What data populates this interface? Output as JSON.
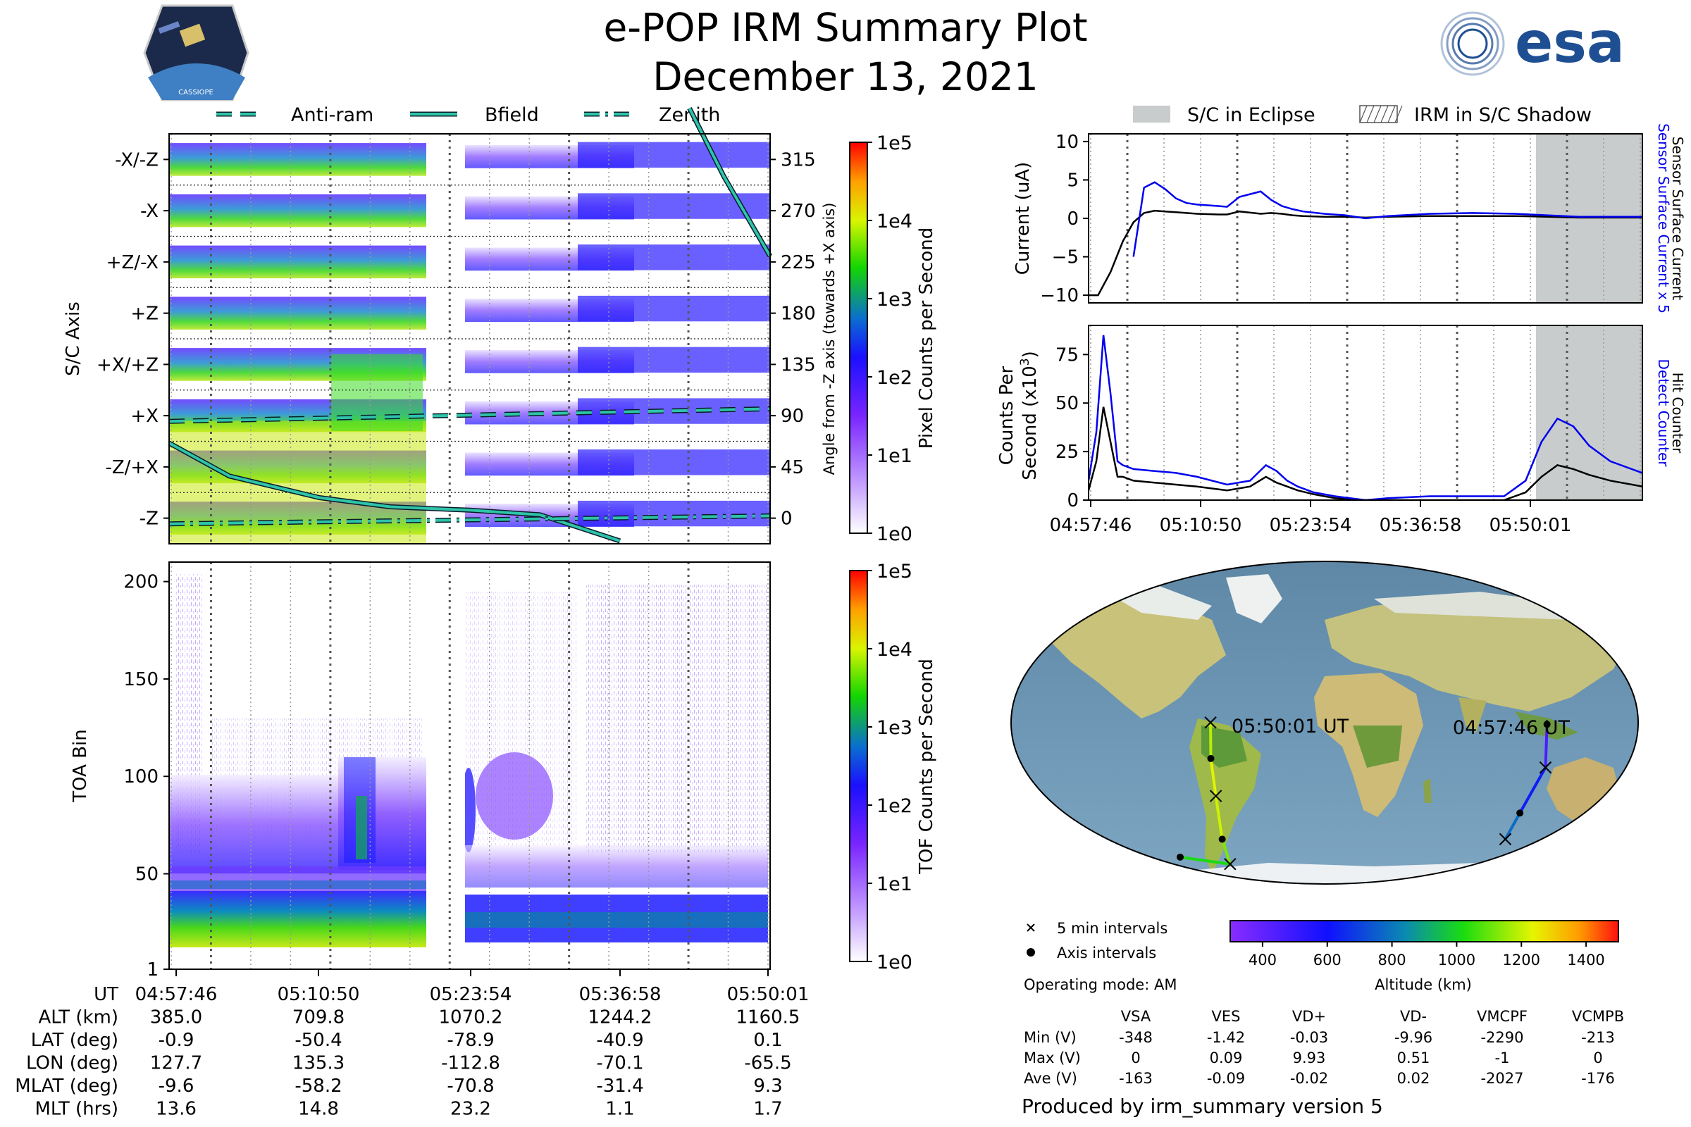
{
  "header": {
    "title": "e-POP IRM Summary Plot",
    "date": "December 13, 2021",
    "logo_left_text": "CASSIOPE",
    "logo_right_text": "esa"
  },
  "legend_top_left": {
    "items": [
      {
        "label": "Anti-ram",
        "style": "dashed"
      },
      {
        "label": "Bfield",
        "style": "solid"
      },
      {
        "label": "Zenith",
        "style": "dashdot"
      }
    ],
    "color": "#2ec4a8"
  },
  "legend_top_right": {
    "items": [
      {
        "label": "S/C in Eclipse",
        "style": "gray-fill"
      },
      {
        "label": "IRM in S/C Shadow",
        "style": "hatch"
      }
    ]
  },
  "time_ticks": [
    "04:57:46",
    "05:10:50",
    "05:23:54",
    "05:36:58",
    "05:50:01"
  ],
  "colors": {
    "anti_ram": "#2ec4a8",
    "detect_counter": "#0000ee",
    "hit_counter": "#000000",
    "eclipse": "#c9cccc"
  },
  "chart_data": [
    {
      "id": "sc_axis_spectrogram",
      "type": "heatmap",
      "ylabel": "S/C Axis",
      "yticks_left": [
        "-X/-Z",
        "-X",
        "+Z/-X",
        "+Z",
        "+X/+Z",
        "+X",
        "-Z/+X",
        "-Z"
      ],
      "ylabel_right": "Angle from -Z axis (towards +X axis)",
      "yticks_right": [
        "315",
        "270",
        "225",
        "180",
        "135",
        "90",
        "45",
        "0"
      ],
      "colorbar": {
        "label": "Pixel Counts per Second",
        "ticks": [
          "1e5",
          "1e4",
          "1e3",
          "1e2",
          "1e1",
          "1e0"
        ]
      },
      "series": [
        {
          "name": "Anti-ram",
          "x": [
            "04:57:46",
            "05:50:01"
          ],
          "y": [
            85,
            96
          ]
        },
        {
          "name": "Bfield",
          "x": [
            "04:57:46",
            "05:03:00",
            "05:10:50",
            "05:17:00",
            "05:23:54",
            "05:30:00",
            "05:36:58"
          ],
          "y": [
            66,
            37,
            18,
            10,
            7,
            3,
            -20
          ]
        },
        {
          "name": "Bfield",
          "x": [
            "05:43:00",
            "05:46:00",
            "05:50:01"
          ],
          "y": [
            360,
            300,
            230
          ]
        },
        {
          "name": "Zenith",
          "x": [
            "04:57:46",
            "05:50:01"
          ],
          "y": [
            -5,
            2
          ]
        }
      ]
    },
    {
      "id": "toa_spectrogram",
      "type": "heatmap",
      "ylabel": "TOA Bin",
      "yticks": [
        "200",
        "150",
        "100",
        "50",
        "1"
      ],
      "ylim": [
        1,
        210
      ],
      "colorbar": {
        "label": "TOF Counts per Second",
        "ticks": [
          "1e5",
          "1e4",
          "1e3",
          "1e2",
          "1e1",
          "1e0"
        ]
      }
    },
    {
      "id": "current_panel",
      "type": "line",
      "ylabel": "Current (uA)",
      "ylim": [
        -11,
        11
      ],
      "yticks": [
        "10",
        "5",
        "0",
        "−5",
        "−10"
      ],
      "right_labels": [
        {
          "text": "Sensor Surface Current x 5",
          "color": "#0000ee"
        },
        {
          "text": "Sensor Surface Current",
          "color": "#000000"
        }
      ],
      "x": [
        "04:57:46",
        "04:58:40",
        "04:59:50",
        "05:01:00",
        "05:02:00",
        "05:03:00",
        "05:04:00",
        "05:05:00",
        "05:06:00",
        "05:07:00",
        "05:08:00",
        "05:10:00",
        "05:10:50",
        "05:12:00",
        "05:14:00",
        "05:15:00",
        "05:16:00",
        "05:17:00",
        "05:18:00",
        "05:20:00",
        "05:22:00",
        "05:23:54",
        "05:26:00",
        "05:30:00",
        "05:34:00",
        "05:38:00",
        "05:41:00",
        "05:44:00",
        "05:50:01"
      ],
      "series": [
        {
          "name": "Sensor Surface Current",
          "values": [
            -10,
            -10,
            -7,
            -3,
            -0.5,
            0.7,
            1.0,
            0.9,
            0.8,
            0.7,
            0.6,
            0.5,
            0.5,
            0.9,
            0.6,
            0.7,
            0.6,
            0.4,
            0.3,
            0.2,
            0.2,
            0.1,
            0.2,
            0.3,
            0.3,
            0.3,
            0.2,
            0.1,
            0.1
          ]
        },
        {
          "name": "Sensor Surface Current x 5",
          "values": [
            null,
            null,
            null,
            null,
            -5,
            4.0,
            4.7,
            3.8,
            2.6,
            2.0,
            1.8,
            1.6,
            1.5,
            2.8,
            3.5,
            2.4,
            1.6,
            1.2,
            0.9,
            0.6,
            0.4,
            0.0,
            0.3,
            0.6,
            0.7,
            0.6,
            0.4,
            0.2,
            0.2
          ]
        }
      ]
    },
    {
      "id": "counts_panel",
      "type": "line",
      "ylabel": "Counts Per Second (x10³)",
      "ylim": [
        0,
        90
      ],
      "yticks": [
        "75",
        "50",
        "25",
        "0"
      ],
      "right_labels": [
        {
          "text": "Detect Counter",
          "color": "#0000ee"
        },
        {
          "text": "Hit Counter",
          "color": "#000000"
        }
      ],
      "x": [
        "04:57:46",
        "04:58:30",
        "04:59:10",
        "04:59:50",
        "05:00:30",
        "05:01:00",
        "05:02:00",
        "05:04:00",
        "05:06:00",
        "05:08:00",
        "05:10:50",
        "05:13:00",
        "05:14:30",
        "05:15:30",
        "05:16:30",
        "05:17:30",
        "05:19:00",
        "05:21:00",
        "05:23:54",
        "05:26:00",
        "05:30:00",
        "05:34:00",
        "05:36:58",
        "05:39:00",
        "05:40:30",
        "05:42:00",
        "05:43:30",
        "05:45:00",
        "05:47:00",
        "05:50:01"
      ],
      "series": [
        {
          "name": "Hit Counter",
          "values": [
            5,
            20,
            48,
            30,
            12,
            12,
            10,
            9,
            8,
            7,
            5,
            7,
            12,
            9,
            7,
            5,
            3,
            1,
            0,
            0,
            0,
            0,
            0,
            4,
            12,
            18,
            16,
            13,
            10,
            7
          ]
        },
        {
          "name": "Detect Counter",
          "values": [
            10,
            35,
            85,
            55,
            20,
            18,
            16,
            15,
            14,
            12,
            8,
            10,
            18,
            15,
            10,
            7,
            4,
            2,
            0,
            1,
            2,
            2,
            2,
            10,
            30,
            42,
            38,
            28,
            20,
            14
          ]
        }
      ],
      "eclipse_start": "05:43:30"
    },
    {
      "id": "orbit_map",
      "type": "scatter",
      "colorbar": {
        "label": "Altitude (km)",
        "ticks": [
          "400",
          "600",
          "800",
          "1000",
          "1200",
          "1400"
        ],
        "range": [
          300,
          1500
        ]
      },
      "start_label": "04:57:46 UT",
      "end_label": "05:50:01 UT",
      "legend": [
        {
          "marker": "x",
          "label": "5 min intervals"
        },
        {
          "marker": "dot",
          "label": "Axis intervals"
        }
      ],
      "operating_mode": "Operating mode: AM",
      "track": [
        {
          "lon": 127.7,
          "lat": -0.9,
          "alt": 385.0
        },
        {
          "lon": 132.0,
          "lat": -25.0,
          "alt": 540.0
        },
        {
          "lon": 135.3,
          "lat": -50.4,
          "alt": 709.8
        },
        {
          "lon": 150.0,
          "lat": -65.0,
          "alt": 850.0
        },
        {
          "lon": -150.0,
          "lat": -75.0,
          "alt": 960.0
        },
        {
          "lon": -112.8,
          "lat": -78.9,
          "alt": 1070.2
        },
        {
          "lon": -85.0,
          "lat": -65.0,
          "alt": 1180.0
        },
        {
          "lon": -70.1,
          "lat": -40.9,
          "alt": 1244.2
        },
        {
          "lon": -67.0,
          "lat": -20.0,
          "alt": 1210.0
        },
        {
          "lon": -65.5,
          "lat": 0.1,
          "alt": 1160.5
        }
      ]
    }
  ],
  "stats_table": {
    "columns": [
      "",
      "VSA",
      "VES",
      "VD+",
      "VD-",
      "VMCPF",
      "VCMPB"
    ],
    "rows": [
      [
        "Min (V)",
        "-348",
        "-1.42",
        "-0.03",
        "-9.96",
        "-2290",
        "-213"
      ],
      [
        "Max (V)",
        "0",
        "0.09",
        "9.93",
        "0.51",
        "-1",
        "0"
      ],
      [
        "Ave (V)",
        "-163",
        "-0.09",
        "-0.02",
        "0.02",
        "-2027",
        "-176"
      ]
    ]
  },
  "ephemeris_table": {
    "rows": [
      [
        "UT",
        "04:57:46",
        "05:10:50",
        "05:23:54",
        "05:36:58",
        "05:50:01"
      ],
      [
        "ALT (km)",
        "385.0",
        "709.8",
        "1070.2",
        "1244.2",
        "1160.5"
      ],
      [
        "LAT (deg)",
        "-0.9",
        "-50.4",
        "-78.9",
        "-40.9",
        "0.1"
      ],
      [
        "LON (deg)",
        "127.7",
        "135.3",
        "-112.8",
        "-70.1",
        "-65.5"
      ],
      [
        "MLAT (deg)",
        "-9.6",
        "-58.2",
        "-70.8",
        "-31.4",
        "9.3"
      ],
      [
        "MLT (hrs)",
        "13.6",
        "14.8",
        "23.2",
        "1.1",
        "1.7"
      ]
    ]
  },
  "footer": "Produced by irm_summary version 5"
}
